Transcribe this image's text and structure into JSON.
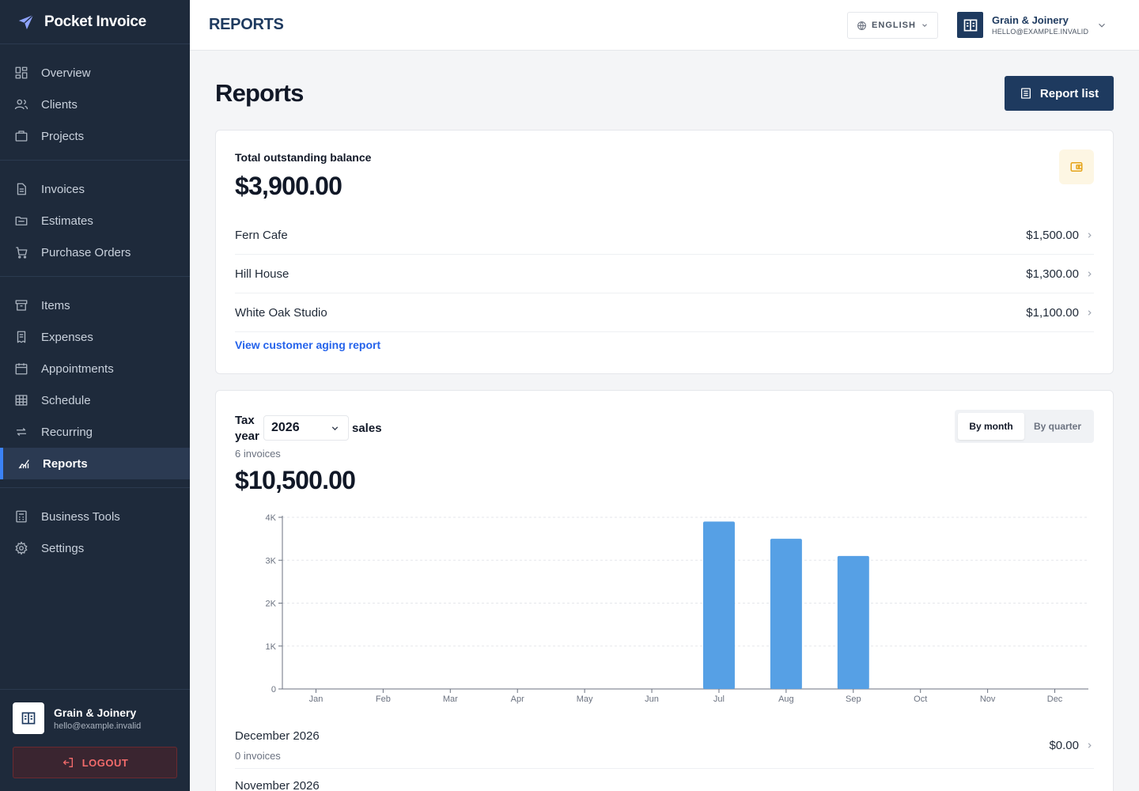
{
  "app": {
    "name": "Pocket Invoice"
  },
  "sidebar": {
    "groups": [
      [
        {
          "label": "Overview",
          "icon": "grid-icon"
        },
        {
          "label": "Clients",
          "icon": "users-icon"
        },
        {
          "label": "Projects",
          "icon": "briefcase-icon"
        }
      ],
      [
        {
          "label": "Invoices",
          "icon": "file-icon"
        },
        {
          "label": "Estimates",
          "icon": "folder-icon"
        },
        {
          "label": "Purchase Orders",
          "icon": "cart-icon"
        }
      ],
      [
        {
          "label": "Items",
          "icon": "archive-icon"
        },
        {
          "label": "Expenses",
          "icon": "receipt-icon"
        },
        {
          "label": "Appointments",
          "icon": "calendar-icon"
        },
        {
          "label": "Schedule",
          "icon": "table-icon"
        },
        {
          "label": "Recurring",
          "icon": "repeat-icon"
        },
        {
          "label": "Reports",
          "icon": "chart-icon",
          "active": true
        }
      ],
      [
        {
          "label": "Business Tools",
          "icon": "calculator-icon"
        },
        {
          "label": "Settings",
          "icon": "gear-icon"
        }
      ]
    ],
    "user": {
      "name": "Grain & Joinery",
      "email": "hello@example.invalid"
    },
    "logout_label": "LOGOUT"
  },
  "topbar": {
    "title": "REPORTS",
    "language": "ENGLISH",
    "account": {
      "name": "Grain & Joinery",
      "email": "HELLO@EXAMPLE.INVALID"
    }
  },
  "page": {
    "title": "Reports",
    "report_list_label": "Report list"
  },
  "outstanding": {
    "label": "Total outstanding balance",
    "total": "$3,900.00",
    "rows": [
      {
        "name": "Fern Cafe",
        "amount": "$1,500.00"
      },
      {
        "name": "Hill House",
        "amount": "$1,300.00"
      },
      {
        "name": "White Oak Studio",
        "amount": "$1,100.00"
      }
    ],
    "link_label": "View customer aging report"
  },
  "sales": {
    "tax_label": "Tax year",
    "year": "2026",
    "sales_label": "sales",
    "invoice_count": "6 invoices",
    "total": "$10,500.00",
    "toggle": {
      "by_month": "By month",
      "by_quarter": "By quarter",
      "selected": "By month"
    },
    "months": [
      {
        "name": "December 2026",
        "count": "0 invoices",
        "amount": "$0.00"
      },
      {
        "name": "November 2026",
        "count": "",
        "amount": ""
      }
    ]
  },
  "colors": {
    "bar": "#56a0e5",
    "accent": "#3b82f6",
    "link": "#2563eb",
    "primary": "#1e3a5f"
  },
  "chart_data": {
    "type": "bar",
    "categories": [
      "Jan",
      "Feb",
      "Mar",
      "Apr",
      "May",
      "Jun",
      "Jul",
      "Aug",
      "Sep",
      "Oct",
      "Nov",
      "Dec"
    ],
    "values": [
      0,
      0,
      0,
      0,
      0,
      0,
      3900,
      3500,
      3100,
      0,
      0,
      0
    ],
    "yticks": [
      "0",
      "1K",
      "2K",
      "3K",
      "4K"
    ],
    "ylim": [
      0,
      4000
    ],
    "grid": true,
    "title": "",
    "xlabel": "",
    "ylabel": ""
  }
}
